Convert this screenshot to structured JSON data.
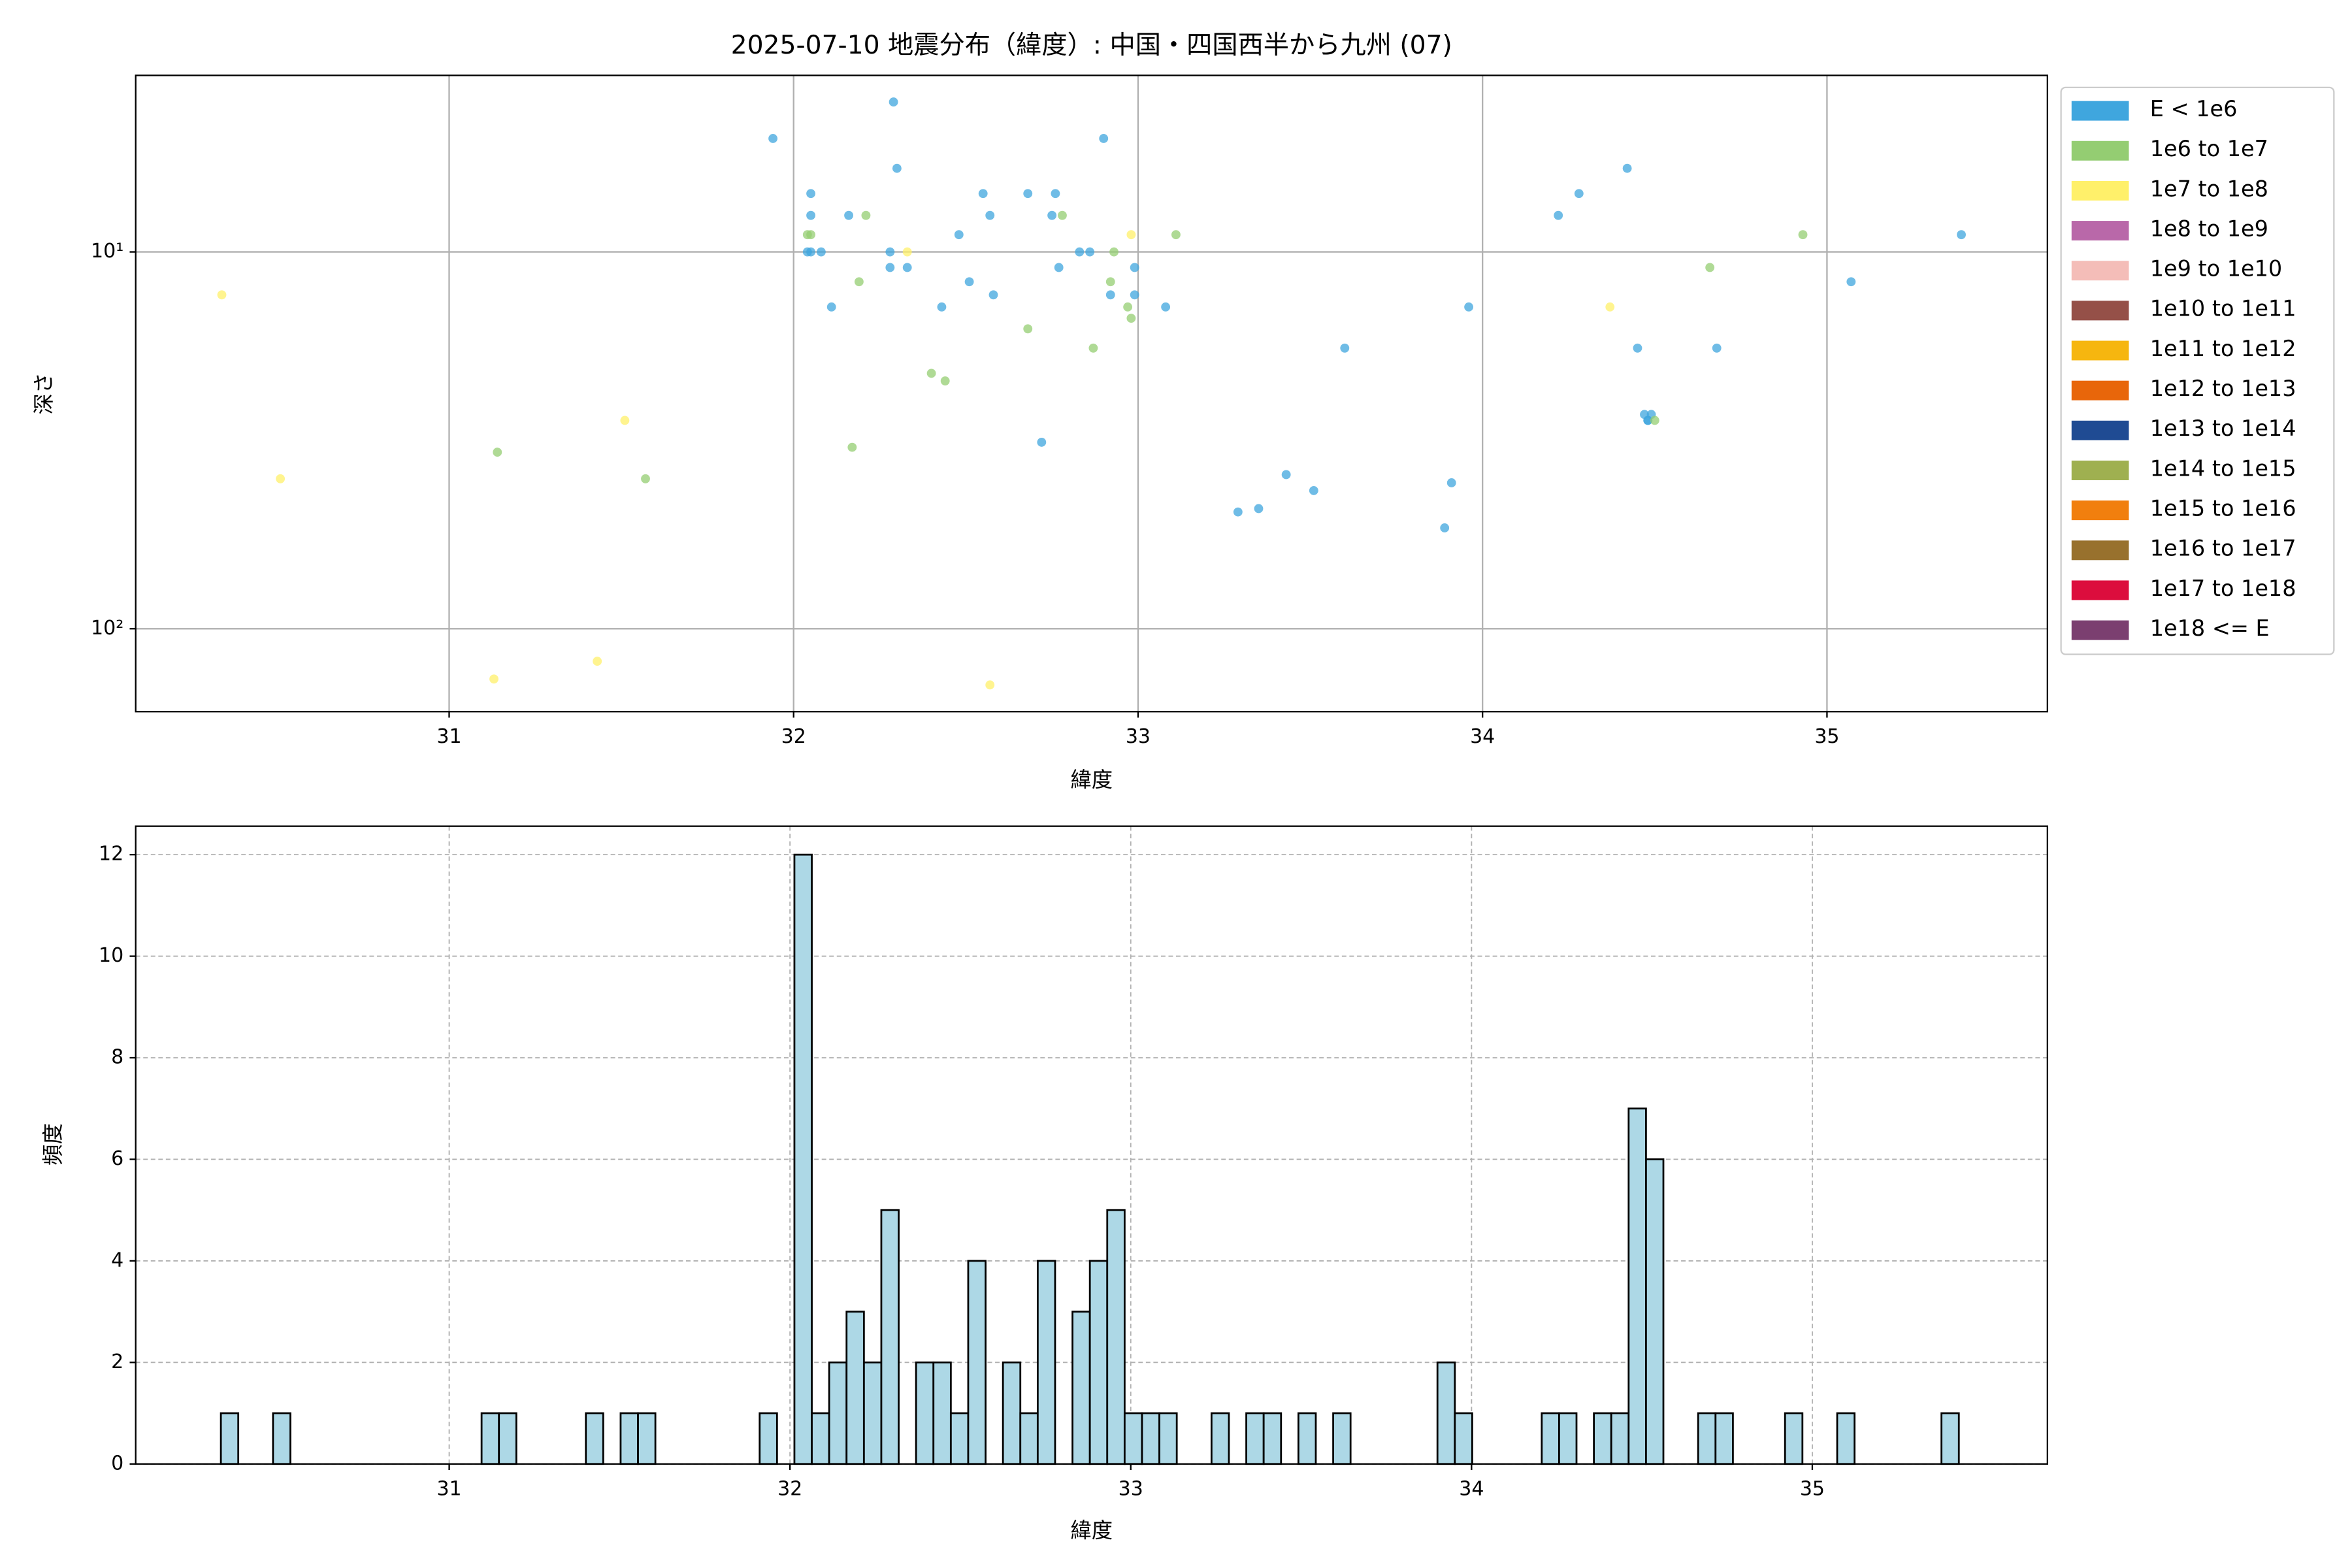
{
  "chart_data": [
    {
      "type": "scatter",
      "title": "2025-07-10 地震分布（緯度）: 中国・四国西半から九州 (07)",
      "xlabel": "緯度",
      "ylabel": "深さ",
      "xlim": [
        30.09,
        35.64
      ],
      "xticks": [
        31,
        32,
        33,
        34,
        35
      ],
      "ylim": [
        3.4,
        166
      ],
      "ylog": true,
      "y_inverted": true,
      "yticks": [
        {
          "value": 10,
          "label": "10¹"
        },
        {
          "value": 100,
          "label": "10²"
        }
      ],
      "grid": true,
      "legend": "outside upper right",
      "series": [
        {
          "name": "E < 1e6",
          "color": "#3fa6de",
          "x": [
            31.94,
            32.29,
            32.3,
            32.05,
            32.05,
            32.16,
            32.04,
            32.05,
            32.08,
            32.11,
            32.28,
            32.28,
            32.33,
            32.48,
            32.51,
            32.43,
            32.55,
            32.57,
            32.58,
            32.68,
            32.72,
            32.76,
            32.75,
            32.77,
            32.83,
            32.86,
            32.9,
            32.92,
            32.99,
            32.99,
            33.08,
            33.29,
            33.35,
            33.43,
            33.51,
            33.6,
            33.89,
            33.91,
            33.96,
            34.22,
            34.28,
            34.42,
            34.45,
            34.47,
            34.48,
            34.49,
            34.48,
            34.68,
            35.07,
            35.39
          ],
          "values": [
            5,
            4,
            6,
            7,
            8,
            8,
            10,
            10,
            10,
            14,
            10,
            11,
            11,
            9,
            12,
            14,
            7,
            8,
            13,
            7,
            32,
            7,
            8,
            11,
            10,
            10,
            5,
            13,
            11,
            13,
            14,
            49,
            48,
            39,
            43,
            18,
            54,
            41,
            14,
            8,
            7,
            6,
            18,
            27,
            28,
            27,
            28,
            18,
            12,
            9
          ]
        },
        {
          "name": "1e6 to 1e7",
          "color": "#94cd72",
          "x": [
            32.05,
            32.04,
            32.21,
            32.19,
            32.17,
            32.4,
            32.44,
            32.68,
            32.78,
            32.87,
            32.92,
            32.93,
            32.97,
            32.98,
            33.11,
            31.14,
            31.57,
            34.66,
            34.93,
            34.5
          ],
          "values": [
            9,
            9,
            8,
            12,
            33,
            21,
            22,
            16,
            8,
            18,
            12,
            10,
            14,
            15,
            9,
            34,
            40,
            11,
            9,
            28
          ]
        },
        {
          "name": "1e7 to 1e8",
          "color": "#fff06a",
          "x": [
            30.34,
            30.51,
            31.51,
            31.13,
            31.43,
            32.57,
            32.33,
            32.98,
            34.37
          ],
          "values": [
            13,
            40,
            28,
            136,
            122,
            141,
            10,
            9,
            14
          ]
        },
        {
          "name": "1e8 to 1e9",
          "color": "#b968a9",
          "x": [],
          "values": []
        },
        {
          "name": "1e9 to 1e10",
          "color": "#f4bdb8",
          "x": [],
          "values": []
        },
        {
          "name": "1e10 to 1e11",
          "color": "#955048",
          "x": [],
          "values": []
        },
        {
          "name": "1e11 to 1e12",
          "color": "#f6b60f",
          "x": [],
          "values": []
        },
        {
          "name": "1e12 to 1e13",
          "color": "#e8660a",
          "x": [],
          "values": []
        },
        {
          "name": "1e13 to 1e14",
          "color": "#1f4b93",
          "x": [],
          "values": []
        },
        {
          "name": "1e14 to 1e15",
          "color": "#9fb050",
          "x": [],
          "values": []
        },
        {
          "name": "1e15 to 1e16",
          "color": "#f17f0e",
          "x": [],
          "values": []
        },
        {
          "name": "1e16 to 1e17",
          "color": "#98712d",
          "x": [],
          "values": []
        },
        {
          "name": "1e17 to 1e18",
          "color": "#dc0d3d",
          "x": [],
          "values": []
        },
        {
          "name": "1e18 <= E",
          "color": "#7b3f70",
          "x": [],
          "values": []
        }
      ]
    },
    {
      "type": "histogram",
      "xlabel": "緯度",
      "ylabel": "頻度",
      "color": "#add8e6",
      "edgecolor": "#000000",
      "xlim": [
        30.08,
        35.69
      ],
      "xticks": [
        31,
        32,
        33,
        34,
        35
      ],
      "ylim": [
        0,
        12.56
      ],
      "yticks": [
        0,
        2,
        4,
        6,
        8,
        10,
        12
      ],
      "grid": true,
      "bins": [
        30.33,
        30.381,
        30.432,
        30.483,
        30.534,
        30.585,
        30.636,
        30.687,
        30.738,
        30.789,
        30.84,
        30.891,
        30.942,
        30.993,
        31.044,
        31.095,
        31.146,
        31.197,
        31.248,
        31.299,
        31.35,
        31.401,
        31.452,
        31.503,
        31.554,
        31.605,
        31.656,
        31.707,
        31.758,
        31.809,
        31.86,
        31.911,
        31.962,
        32.013,
        32.064,
        32.115,
        32.166,
        32.217,
        32.268,
        32.319,
        32.37,
        32.421,
        32.472,
        32.523,
        32.574,
        32.625,
        32.676,
        32.727,
        32.778,
        32.829,
        32.88,
        32.931,
        32.982,
        33.033,
        33.084,
        33.135,
        33.186,
        33.237,
        33.288,
        33.339,
        33.39,
        33.441,
        33.492,
        33.543,
        33.594,
        33.645,
        33.696,
        33.747,
        33.798,
        33.849,
        33.9,
        33.951,
        34.002,
        34.053,
        34.104,
        34.155,
        34.206,
        34.257,
        34.308,
        34.359,
        34.41,
        34.461,
        34.512,
        34.563,
        34.614,
        34.665,
        34.716,
        34.767,
        34.818,
        34.869,
        34.92,
        34.971,
        35.022,
        35.073,
        35.124,
        35.175,
        35.226,
        35.277,
        35.328,
        35.379,
        35.43
      ],
      "values": [
        1,
        0,
        0,
        1,
        0,
        0,
        0,
        0,
        0,
        0,
        0,
        0,
        0,
        0,
        0,
        1,
        1,
        0,
        0,
        0,
        0,
        1,
        0,
        1,
        1,
        0,
        0,
        0,
        0,
        0,
        0,
        1,
        0,
        12,
        1,
        2,
        3,
        2,
        5,
        0,
        2,
        2,
        1,
        4,
        0,
        2,
        1,
        4,
        0,
        3,
        4,
        5,
        1,
        1,
        1,
        0,
        0,
        1,
        0,
        1,
        1,
        0,
        1,
        0,
        1,
        0,
        0,
        0,
        0,
        0,
        2,
        1,
        0,
        0,
        0,
        0,
        1,
        1,
        0,
        1,
        1,
        7,
        6,
        0,
        0,
        1,
        1,
        0,
        0,
        0,
        1,
        0,
        0,
        1,
        0,
        0,
        0,
        0,
        0,
        1
      ]
    }
  ]
}
